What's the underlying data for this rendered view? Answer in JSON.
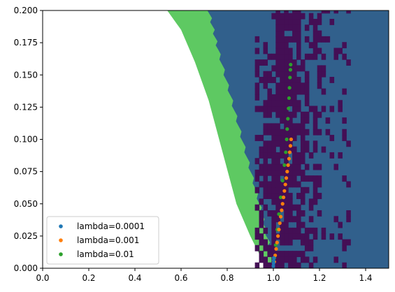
{
  "chart_data": {
    "type": "scatter",
    "title": "",
    "xlabel": "",
    "ylabel": "",
    "xlim": [
      0.0,
      1.5
    ],
    "ylim": [
      0.0,
      0.2
    ],
    "x_ticks": [
      "0.0",
      "0.2",
      "0.4",
      "0.6",
      "0.8",
      "1.0",
      "1.2",
      "1.4"
    ],
    "y_ticks": [
      "0.000",
      "0.025",
      "0.050",
      "0.075",
      "0.100",
      "0.125",
      "0.150",
      "0.175",
      "0.200"
    ],
    "legend": {
      "placement": "lower-left"
    },
    "background_regions": [
      {
        "level": "green",
        "color": "#5ec962",
        "boundary_left": [
          [
            0.54,
            0.2
          ],
          [
            0.6,
            0.185
          ],
          [
            0.66,
            0.16
          ],
          [
            0.72,
            0.13
          ],
          [
            0.78,
            0.09
          ],
          [
            0.84,
            0.05
          ],
          [
            0.9,
            0.025
          ],
          [
            0.97,
            0.0
          ]
        ]
      },
      {
        "level": "blue",
        "color": "#31608c",
        "boundary_left": [
          [
            0.72,
            0.2
          ],
          [
            0.76,
            0.17
          ],
          [
            0.82,
            0.13
          ],
          [
            0.88,
            0.09
          ],
          [
            0.94,
            0.05
          ],
          [
            0.98,
            0.02
          ],
          [
            1.01,
            0.0
          ]
        ]
      },
      {
        "level": "purple",
        "color": "#440f55",
        "approx_x_range": [
          0.92,
          1.32
        ]
      }
    ],
    "series": [
      {
        "name": "lambda=0.0001",
        "color": "#1f77b4",
        "points": [
          [
            1.0,
            0.0
          ],
          [
            1.0,
            0.002
          ],
          [
            1.001,
            0.004
          ],
          [
            1.001,
            0.006
          ],
          [
            1.002,
            0.008
          ]
        ]
      },
      {
        "name": "lambda=0.001",
        "color": "#ff7f0e",
        "points": [
          [
            1.0,
            0.0
          ],
          [
            1.004,
            0.005
          ],
          [
            1.008,
            0.01
          ],
          [
            1.012,
            0.015
          ],
          [
            1.016,
            0.02
          ],
          [
            1.02,
            0.025
          ],
          [
            1.024,
            0.03
          ],
          [
            1.028,
            0.035
          ],
          [
            1.032,
            0.04
          ],
          [
            1.036,
            0.045
          ],
          [
            1.04,
            0.05
          ],
          [
            1.044,
            0.055
          ],
          [
            1.048,
            0.06
          ],
          [
            1.052,
            0.065
          ],
          [
            1.056,
            0.07
          ],
          [
            1.06,
            0.075
          ],
          [
            1.064,
            0.08
          ],
          [
            1.068,
            0.085
          ],
          [
            1.071,
            0.09
          ],
          [
            1.074,
            0.095
          ],
          [
            1.077,
            0.1
          ]
        ]
      },
      {
        "name": "lambda=0.01",
        "color": "#2ca02c",
        "points": [
          [
            1.0,
            0.0
          ],
          [
            1.004,
            0.008
          ],
          [
            1.01,
            0.018
          ],
          [
            1.017,
            0.03
          ],
          [
            1.024,
            0.042
          ],
          [
            1.032,
            0.055
          ],
          [
            1.04,
            0.068
          ],
          [
            1.048,
            0.08
          ],
          [
            1.054,
            0.09
          ],
          [
            1.058,
            0.1
          ],
          [
            1.06,
            0.108
          ],
          [
            1.063,
            0.116
          ],
          [
            1.066,
            0.124
          ],
          [
            1.068,
            0.132
          ],
          [
            1.07,
            0.14
          ],
          [
            1.072,
            0.148
          ],
          [
            1.074,
            0.154
          ],
          [
            1.075,
            0.158
          ]
        ]
      }
    ]
  }
}
